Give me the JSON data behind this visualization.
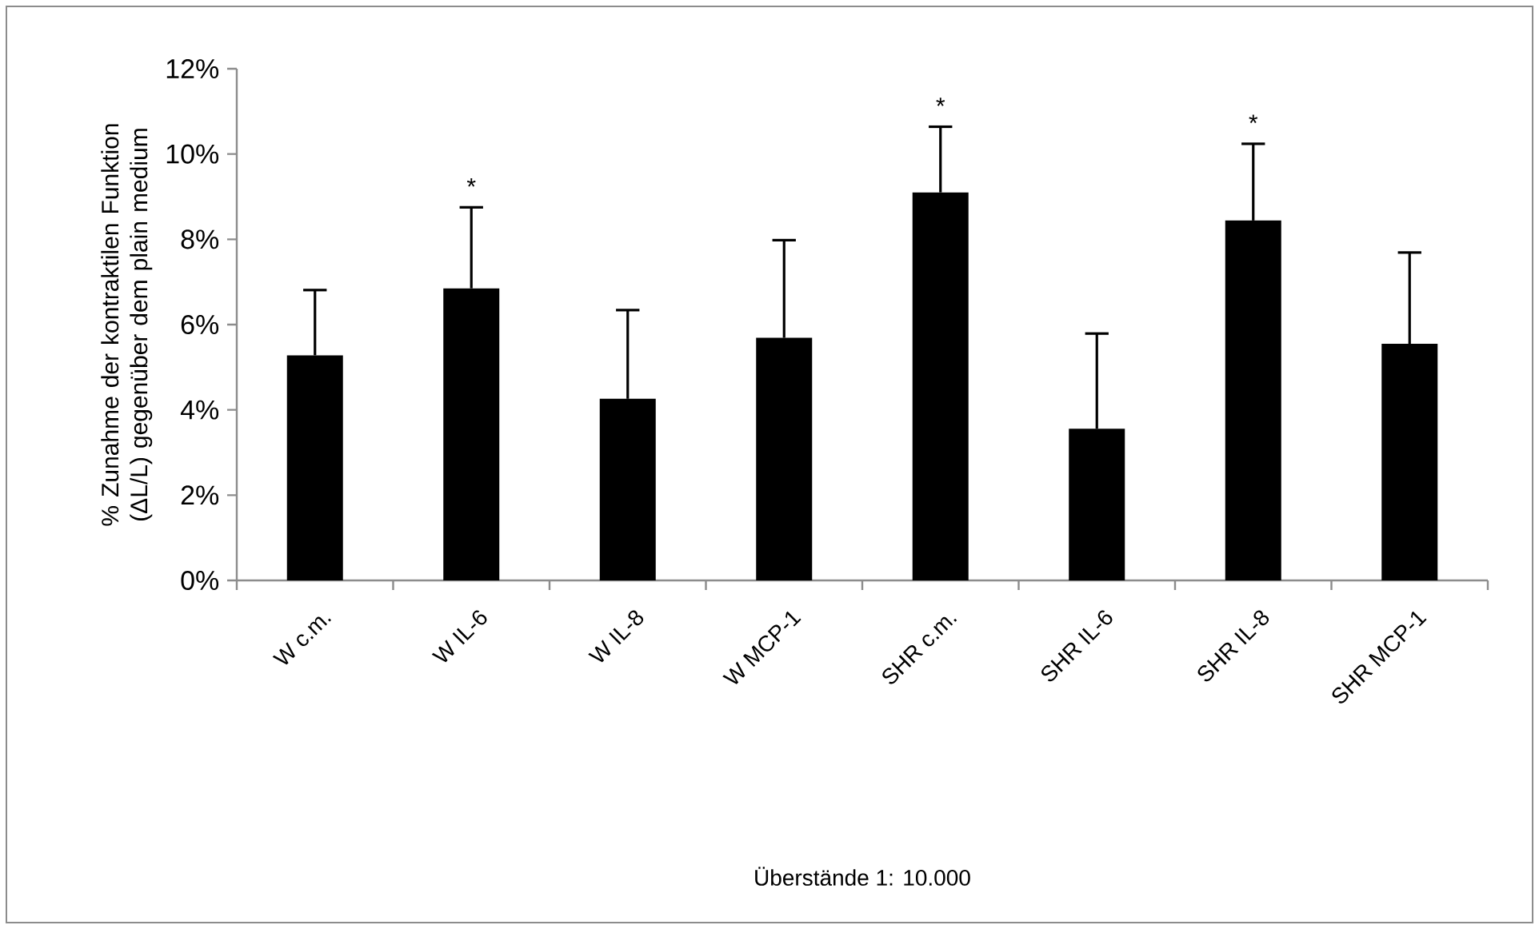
{
  "chart_data": {
    "type": "bar",
    "ylabel": "% Zunahme der kontraktilen Funktion (ΔL/L) gegenüber dem plain medium",
    "categories": [
      "W c.m.",
      "W IL-6",
      "W IL-8",
      "W MCP-1",
      "SHR c.m.",
      "SHR IL-6",
      "SHR IL-8",
      "SHR MCP-1"
    ],
    "values": [
      5.28,
      6.85,
      4.26,
      5.69,
      9.1,
      3.56,
      8.44,
      5.55
    ],
    "errors": [
      [
        5.28,
        6.81
      ],
      [
        6.85,
        8.75
      ],
      [
        4.26,
        6.34
      ],
      [
        5.69,
        7.98
      ],
      [
        9.1,
        10.64
      ],
      [
        3.56,
        5.79
      ],
      [
        8.44,
        10.24
      ],
      [
        5.55,
        7.69
      ]
    ],
    "color": "#000000",
    "ylim": [
      0,
      12
    ],
    "yticks": [
      {
        "value": 0,
        "label": "0%"
      },
      {
        "value": 2,
        "label": "2%"
      },
      {
        "value": 4,
        "label": "4%"
      },
      {
        "value": 6,
        "label": "6%"
      },
      {
        "value": 8,
        "label": "8%"
      },
      {
        "value": 10,
        "label": "10%"
      },
      {
        "value": 12,
        "label": "12%"
      }
    ],
    "annotations": [
      {
        "text": "*",
        "x": "W IL-6",
        "y": 8.75
      },
      {
        "text": "*",
        "x": "SHR c.m.",
        "y": 10.64
      },
      {
        "text": "*",
        "x": "SHR IL-8",
        "y": 10.24
      },
      "Überstände 1: 10.000"
    ]
  }
}
